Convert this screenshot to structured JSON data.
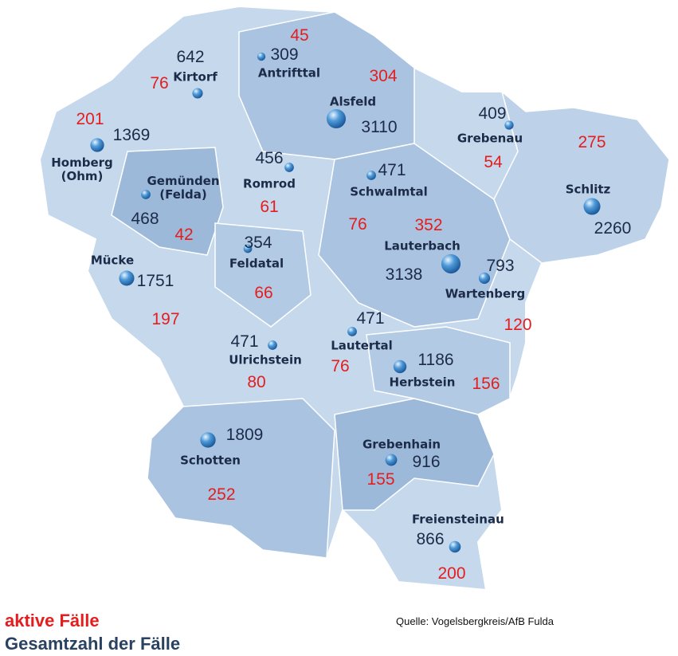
{
  "municipalities": [
    {
      "name": "Kirtorf",
      "total": 642,
      "active": 76
    },
    {
      "name": "Antrifttal",
      "total": 309,
      "active": 45
    },
    {
      "name": "Alsfeld",
      "total": 3110,
      "active": 304
    },
    {
      "name": "Grebenau",
      "total": 409,
      "active": 54
    },
    {
      "name": "Schlitz",
      "total": 2260,
      "active": 275
    },
    {
      "name": "Homberg (Ohm)",
      "total": 1369,
      "active": 201
    },
    {
      "name": "Gemünden (Felda)",
      "total": 468,
      "active": 42
    },
    {
      "name": "Romrod",
      "total": 456,
      "active": 61
    },
    {
      "name": "Schwalmtal",
      "total": 471,
      "active": 76
    },
    {
      "name": "Lauterbach",
      "total": 3138,
      "active": 352
    },
    {
      "name": "Wartenberg",
      "total": 793,
      "active": 120
    },
    {
      "name": "Feldatal",
      "total": 354,
      "active": 66
    },
    {
      "name": "Mücke",
      "total": 1751,
      "active": 197
    },
    {
      "name": "Ulrichstein",
      "total": 471,
      "active": 80
    },
    {
      "name": "Lautertal",
      "total": 471,
      "active": 76
    },
    {
      "name": "Herbstein",
      "total": 1186,
      "active": 156
    },
    {
      "name": "Schotten",
      "total": 1809,
      "active": 252
    },
    {
      "name": "Grebenhain",
      "total": 916,
      "active": 155
    },
    {
      "name": "Freiensteinau",
      "total": 866,
      "active": 200
    }
  ],
  "legend": {
    "active": "aktive Fälle",
    "total": "Gesamtzahl der Fälle"
  },
  "source": "Quelle: Vogelsbergkreis/AfB Fulda"
}
